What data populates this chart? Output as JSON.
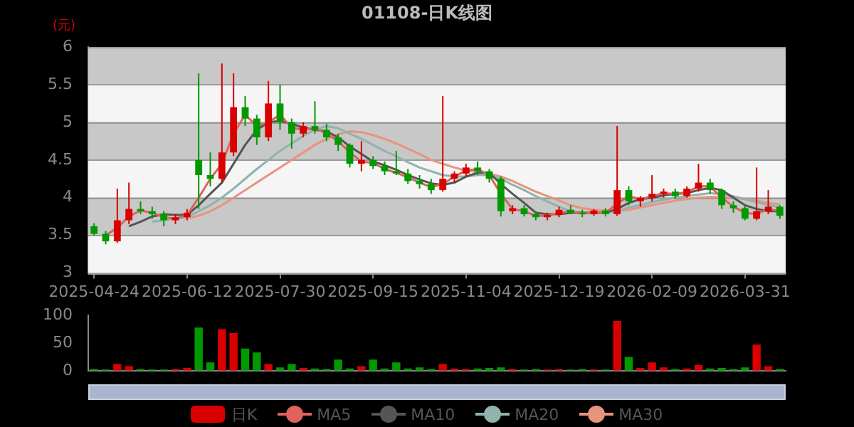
{
  "chart_data": [
    {
      "type": "candlestick",
      "title": "01108-日K线图",
      "ylabel": "(元)",
      "categories": [
        "2025-04-24",
        null,
        null,
        null,
        null,
        null,
        null,
        null,
        "2025-06-12",
        null,
        null,
        null,
        null,
        null,
        null,
        null,
        "2025-07-30",
        null,
        null,
        null,
        null,
        null,
        null,
        null,
        "2025-09-15",
        null,
        null,
        null,
        null,
        null,
        null,
        null,
        "2025-11-04",
        null,
        null,
        null,
        null,
        null,
        null,
        null,
        "2025-12-19",
        null,
        null,
        null,
        null,
        null,
        null,
        null,
        "2026-02-09",
        null,
        null,
        null,
        null,
        null,
        null,
        null,
        "2026-03-31",
        null,
        null,
        null
      ],
      "ylim": [
        3,
        6
      ],
      "yticks": [
        3,
        3.5,
        4,
        4.5,
        5,
        5.5,
        6
      ],
      "grid": "y",
      "legend": "bottom",
      "marker": "none",
      "series": [
        {
          "name": "日K",
          "type": "candlestick",
          "color": "#d80000",
          "colors": [
            "#009900",
            "#009900",
            "#d80000",
            "#d80000",
            "#009900",
            "#009900",
            "#009900",
            "#d80000",
            "#d80000",
            "#009900",
            "#009900",
            "#d80000",
            "#d80000",
            "#009900",
            "#009900",
            "#d80000",
            "#009900",
            "#009900",
            "#d80000",
            "#009900",
            "#009900",
            "#009900",
            "#009900",
            "#d80000",
            "#009900",
            "#009900",
            "#009900",
            "#009900",
            "#009900",
            "#009900",
            "#d80000",
            "#d80000",
            "#d80000",
            "#009900",
            "#009900",
            "#009900",
            "#d80000",
            "#009900",
            "#009900",
            "#d80000",
            "#d80000",
            "#009900",
            "#009900",
            "#d80000",
            "#009900",
            "#d80000",
            "#009900",
            "#d80000",
            "#d80000",
            "#d80000",
            "#009900",
            "#d80000",
            "#d80000",
            "#009900",
            "#009900",
            "#009900",
            "#009900",
            "#d80000",
            "#d80000",
            "#009900"
          ],
          "ohlc": [
            [
              3.62,
              3.66,
              3.5,
              3.52
            ],
            [
              3.52,
              3.56,
              3.38,
              3.42
            ],
            [
              3.42,
              4.12,
              3.4,
              3.7
            ],
            [
              3.7,
              4.2,
              3.65,
              3.85
            ],
            [
              3.85,
              3.95,
              3.78,
              3.82
            ],
            [
              3.82,
              3.88,
              3.72,
              3.78
            ],
            [
              3.78,
              3.82,
              3.62,
              3.7
            ],
            [
              3.7,
              3.78,
              3.65,
              3.74
            ],
            [
              3.74,
              3.85,
              3.7,
              3.8
            ],
            [
              4.5,
              5.65,
              3.85,
              4.3
            ],
            [
              4.3,
              4.6,
              4.15,
              4.25
            ],
            [
              4.25,
              5.78,
              4.2,
              4.6
            ],
            [
              4.6,
              5.65,
              4.55,
              5.2
            ],
            [
              5.2,
              5.35,
              4.95,
              5.05
            ],
            [
              5.05,
              5.1,
              4.7,
              4.8
            ],
            [
              4.8,
              5.55,
              4.75,
              5.25
            ],
            [
              5.25,
              5.5,
              4.9,
              5.0
            ],
            [
              5.0,
              5.05,
              4.65,
              4.85
            ],
            [
              4.85,
              5.0,
              4.8,
              4.95
            ],
            [
              4.95,
              5.28,
              4.85,
              4.9
            ],
            [
              4.9,
              4.98,
              4.75,
              4.8
            ],
            [
              4.8,
              4.85,
              4.62,
              4.7
            ],
            [
              4.7,
              4.72,
              4.4,
              4.45
            ],
            [
              4.45,
              4.75,
              4.35,
              4.5
            ],
            [
              4.5,
              4.55,
              4.38,
              4.42
            ],
            [
              4.42,
              4.48,
              4.3,
              4.35
            ],
            [
              4.35,
              4.62,
              4.3,
              4.32
            ],
            [
              4.32,
              4.38,
              4.18,
              4.22
            ],
            [
              4.22,
              4.3,
              4.12,
              4.18
            ],
            [
              4.18,
              4.25,
              4.05,
              4.1
            ],
            [
              4.1,
              5.35,
              4.08,
              4.25
            ],
            [
              4.25,
              4.35,
              4.2,
              4.32
            ],
            [
              4.32,
              4.45,
              4.28,
              4.4
            ],
            [
              4.4,
              4.48,
              4.3,
              4.35
            ],
            [
              4.35,
              4.38,
              4.2,
              4.25
            ],
            [
              4.25,
              4.28,
              3.75,
              3.82
            ],
            [
              3.82,
              3.9,
              3.78,
              3.86
            ],
            [
              3.86,
              3.9,
              3.75,
              3.78
            ],
            [
              3.78,
              3.82,
              3.7,
              3.74
            ],
            [
              3.74,
              3.8,
              3.7,
              3.77
            ],
            [
              3.77,
              3.88,
              3.74,
              3.84
            ],
            [
              3.84,
              3.9,
              3.78,
              3.8
            ],
            [
              3.8,
              3.84,
              3.74,
              3.78
            ],
            [
              3.78,
              3.85,
              3.76,
              3.83
            ],
            [
              3.83,
              3.86,
              3.75,
              3.78
            ],
            [
              3.78,
              4.95,
              3.76,
              4.1
            ],
            [
              4.1,
              4.15,
              3.9,
              3.95
            ],
            [
              3.95,
              4.02,
              3.88,
              4.0
            ],
            [
              4.0,
              4.3,
              3.95,
              4.05
            ],
            [
              4.05,
              4.12,
              4.0,
              4.08
            ],
            [
              4.08,
              4.12,
              3.98,
              4.02
            ],
            [
              4.02,
              4.15,
              4.0,
              4.12
            ],
            [
              4.12,
              4.45,
              4.08,
              4.2
            ],
            [
              4.2,
              4.25,
              4.05,
              4.1
            ],
            [
              4.1,
              4.12,
              3.85,
              3.9
            ],
            [
              3.9,
              3.95,
              3.8,
              3.86
            ],
            [
              3.86,
              3.9,
              3.7,
              3.72
            ],
            [
              3.72,
              4.4,
              3.7,
              3.82
            ],
            [
              3.82,
              4.1,
              3.78,
              3.88
            ],
            [
              3.88,
              3.9,
              3.72,
              3.76
            ]
          ]
        },
        {
          "name": "MA5",
          "type": "line",
          "color": "#e0625a",
          "values": [
            null,
            3.5,
            3.6,
            3.75,
            3.83,
            3.8,
            3.74,
            3.72,
            3.77,
            4.0,
            4.25,
            4.45,
            4.85,
            5.1,
            4.95,
            5.0,
            5.1,
            4.93,
            4.9,
            4.92,
            4.85,
            4.75,
            4.6,
            4.48,
            4.46,
            4.38,
            4.33,
            4.27,
            4.2,
            4.14,
            4.18,
            4.28,
            4.36,
            4.38,
            4.3,
            4.05,
            3.85,
            3.82,
            3.76,
            3.76,
            3.8,
            3.82,
            3.79,
            3.8,
            3.8,
            3.92,
            4.02,
            3.98,
            4.02,
            4.06,
            4.05,
            4.07,
            4.15,
            4.15,
            4.0,
            3.88,
            3.8,
            3.78,
            3.85,
            3.82
          ]
        },
        {
          "name": "MA10",
          "type": "line",
          "color": "#555555",
          "values": [
            null,
            null,
            null,
            3.62,
            3.68,
            3.75,
            3.78,
            3.77,
            3.77,
            3.9,
            4.05,
            4.2,
            4.45,
            4.7,
            4.9,
            5.0,
            5.02,
            4.98,
            4.93,
            4.9,
            4.88,
            4.8,
            4.68,
            4.58,
            4.48,
            4.43,
            4.37,
            4.3,
            4.24,
            4.19,
            4.17,
            4.2,
            4.28,
            4.33,
            4.33,
            4.18,
            4.05,
            3.93,
            3.8,
            3.78,
            3.78,
            3.8,
            3.8,
            3.8,
            3.8,
            3.85,
            3.93,
            3.98,
            4.0,
            4.03,
            4.05,
            4.06,
            4.1,
            4.13,
            4.1,
            4.0,
            3.9,
            3.85,
            3.82,
            3.82
          ]
        },
        {
          "name": "MA20",
          "type": "line",
          "color": "#8fb3ad",
          "values": [
            null,
            null,
            null,
            null,
            null,
            3.68,
            3.7,
            3.72,
            3.74,
            3.82,
            3.9,
            4.0,
            4.12,
            4.25,
            4.38,
            4.5,
            4.62,
            4.72,
            4.82,
            4.9,
            4.95,
            4.92,
            4.85,
            4.78,
            4.7,
            4.62,
            4.55,
            4.47,
            4.4,
            4.35,
            4.3,
            4.28,
            4.28,
            4.3,
            4.3,
            4.25,
            4.17,
            4.1,
            4.02,
            3.95,
            3.88,
            3.82,
            3.8,
            3.79,
            3.8,
            3.82,
            3.87,
            3.9,
            3.94,
            3.97,
            4.0,
            4.02,
            4.04,
            4.06,
            4.05,
            4.02,
            3.98,
            3.94,
            3.9,
            3.87
          ]
        },
        {
          "name": "MA30",
          "type": "line",
          "color": "#e8937e",
          "values": [
            null,
            null,
            null,
            null,
            null,
            null,
            null,
            null,
            3.72,
            3.76,
            3.82,
            3.9,
            4.0,
            4.1,
            4.2,
            4.3,
            4.4,
            4.5,
            4.6,
            4.7,
            4.78,
            4.84,
            4.88,
            4.87,
            4.83,
            4.78,
            4.72,
            4.65,
            4.58,
            4.5,
            4.45,
            4.4,
            4.36,
            4.34,
            4.32,
            4.28,
            4.22,
            4.15,
            4.08,
            4.02,
            3.96,
            3.9,
            3.86,
            3.84,
            3.83,
            3.82,
            3.84,
            3.87,
            3.9,
            3.93,
            3.96,
            3.98,
            4.0,
            4.01,
            4.01,
            4.0,
            3.98,
            3.96,
            3.93,
            3.91
          ]
        }
      ]
    },
    {
      "type": "bar",
      "tick_labels": "y",
      "categories": [
        "2025-04-24",
        null,
        null,
        null,
        null,
        null,
        null,
        null,
        "2025-06-12",
        null,
        null,
        null,
        null,
        null,
        null,
        null,
        "2025-07-30",
        null,
        null,
        null,
        null,
        null,
        null,
        null,
        "2025-09-15",
        null,
        null,
        null,
        null,
        null,
        null,
        null,
        "2025-11-04",
        null,
        null,
        null,
        null,
        null,
        null,
        null,
        "2025-12-19",
        null,
        null,
        null,
        null,
        null,
        null,
        null,
        "2026-02-09",
        null,
        null,
        null,
        null,
        null,
        null,
        null,
        "2026-03-31",
        null,
        null,
        null
      ],
      "values": [
        3,
        2,
        12,
        8,
        3,
        2,
        2,
        3,
        5,
        78,
        15,
        75,
        68,
        40,
        33,
        12,
        6,
        12,
        5,
        4,
        3,
        20,
        4,
        8,
        20,
        4,
        15,
        4,
        6,
        3,
        12,
        4,
        3,
        4,
        5,
        6,
        3,
        2,
        3,
        2,
        3,
        2,
        3,
        2,
        2,
        90,
        25,
        5,
        15,
        6,
        3,
        4,
        10,
        4,
        5,
        3,
        6,
        47,
        8,
        3
      ],
      "colors": [
        "#009900",
        "#009900",
        "#d80000",
        "#d80000",
        "#009900",
        "#009900",
        "#009900",
        "#d80000",
        "#d80000",
        "#009900",
        "#009900",
        "#d80000",
        "#d80000",
        "#009900",
        "#009900",
        "#d80000",
        "#009900",
        "#009900",
        "#d80000",
        "#009900",
        "#009900",
        "#009900",
        "#009900",
        "#d80000",
        "#009900",
        "#009900",
        "#009900",
        "#009900",
        "#009900",
        "#009900",
        "#d80000",
        "#d80000",
        "#d80000",
        "#009900",
        "#009900",
        "#009900",
        "#d80000",
        "#009900",
        "#009900",
        "#d80000",
        "#d80000",
        "#009900",
        "#009900",
        "#d80000",
        "#009900",
        "#d80000",
        "#009900",
        "#d80000",
        "#d80000",
        "#d80000",
        "#009900",
        "#d80000",
        "#d80000",
        "#009900",
        "#009900",
        "#009900",
        "#009900",
        "#d80000",
        "#d80000",
        "#009900"
      ],
      "ylim": [
        0,
        100
      ],
      "yticks": [
        0,
        50,
        100
      ]
    }
  ]
}
